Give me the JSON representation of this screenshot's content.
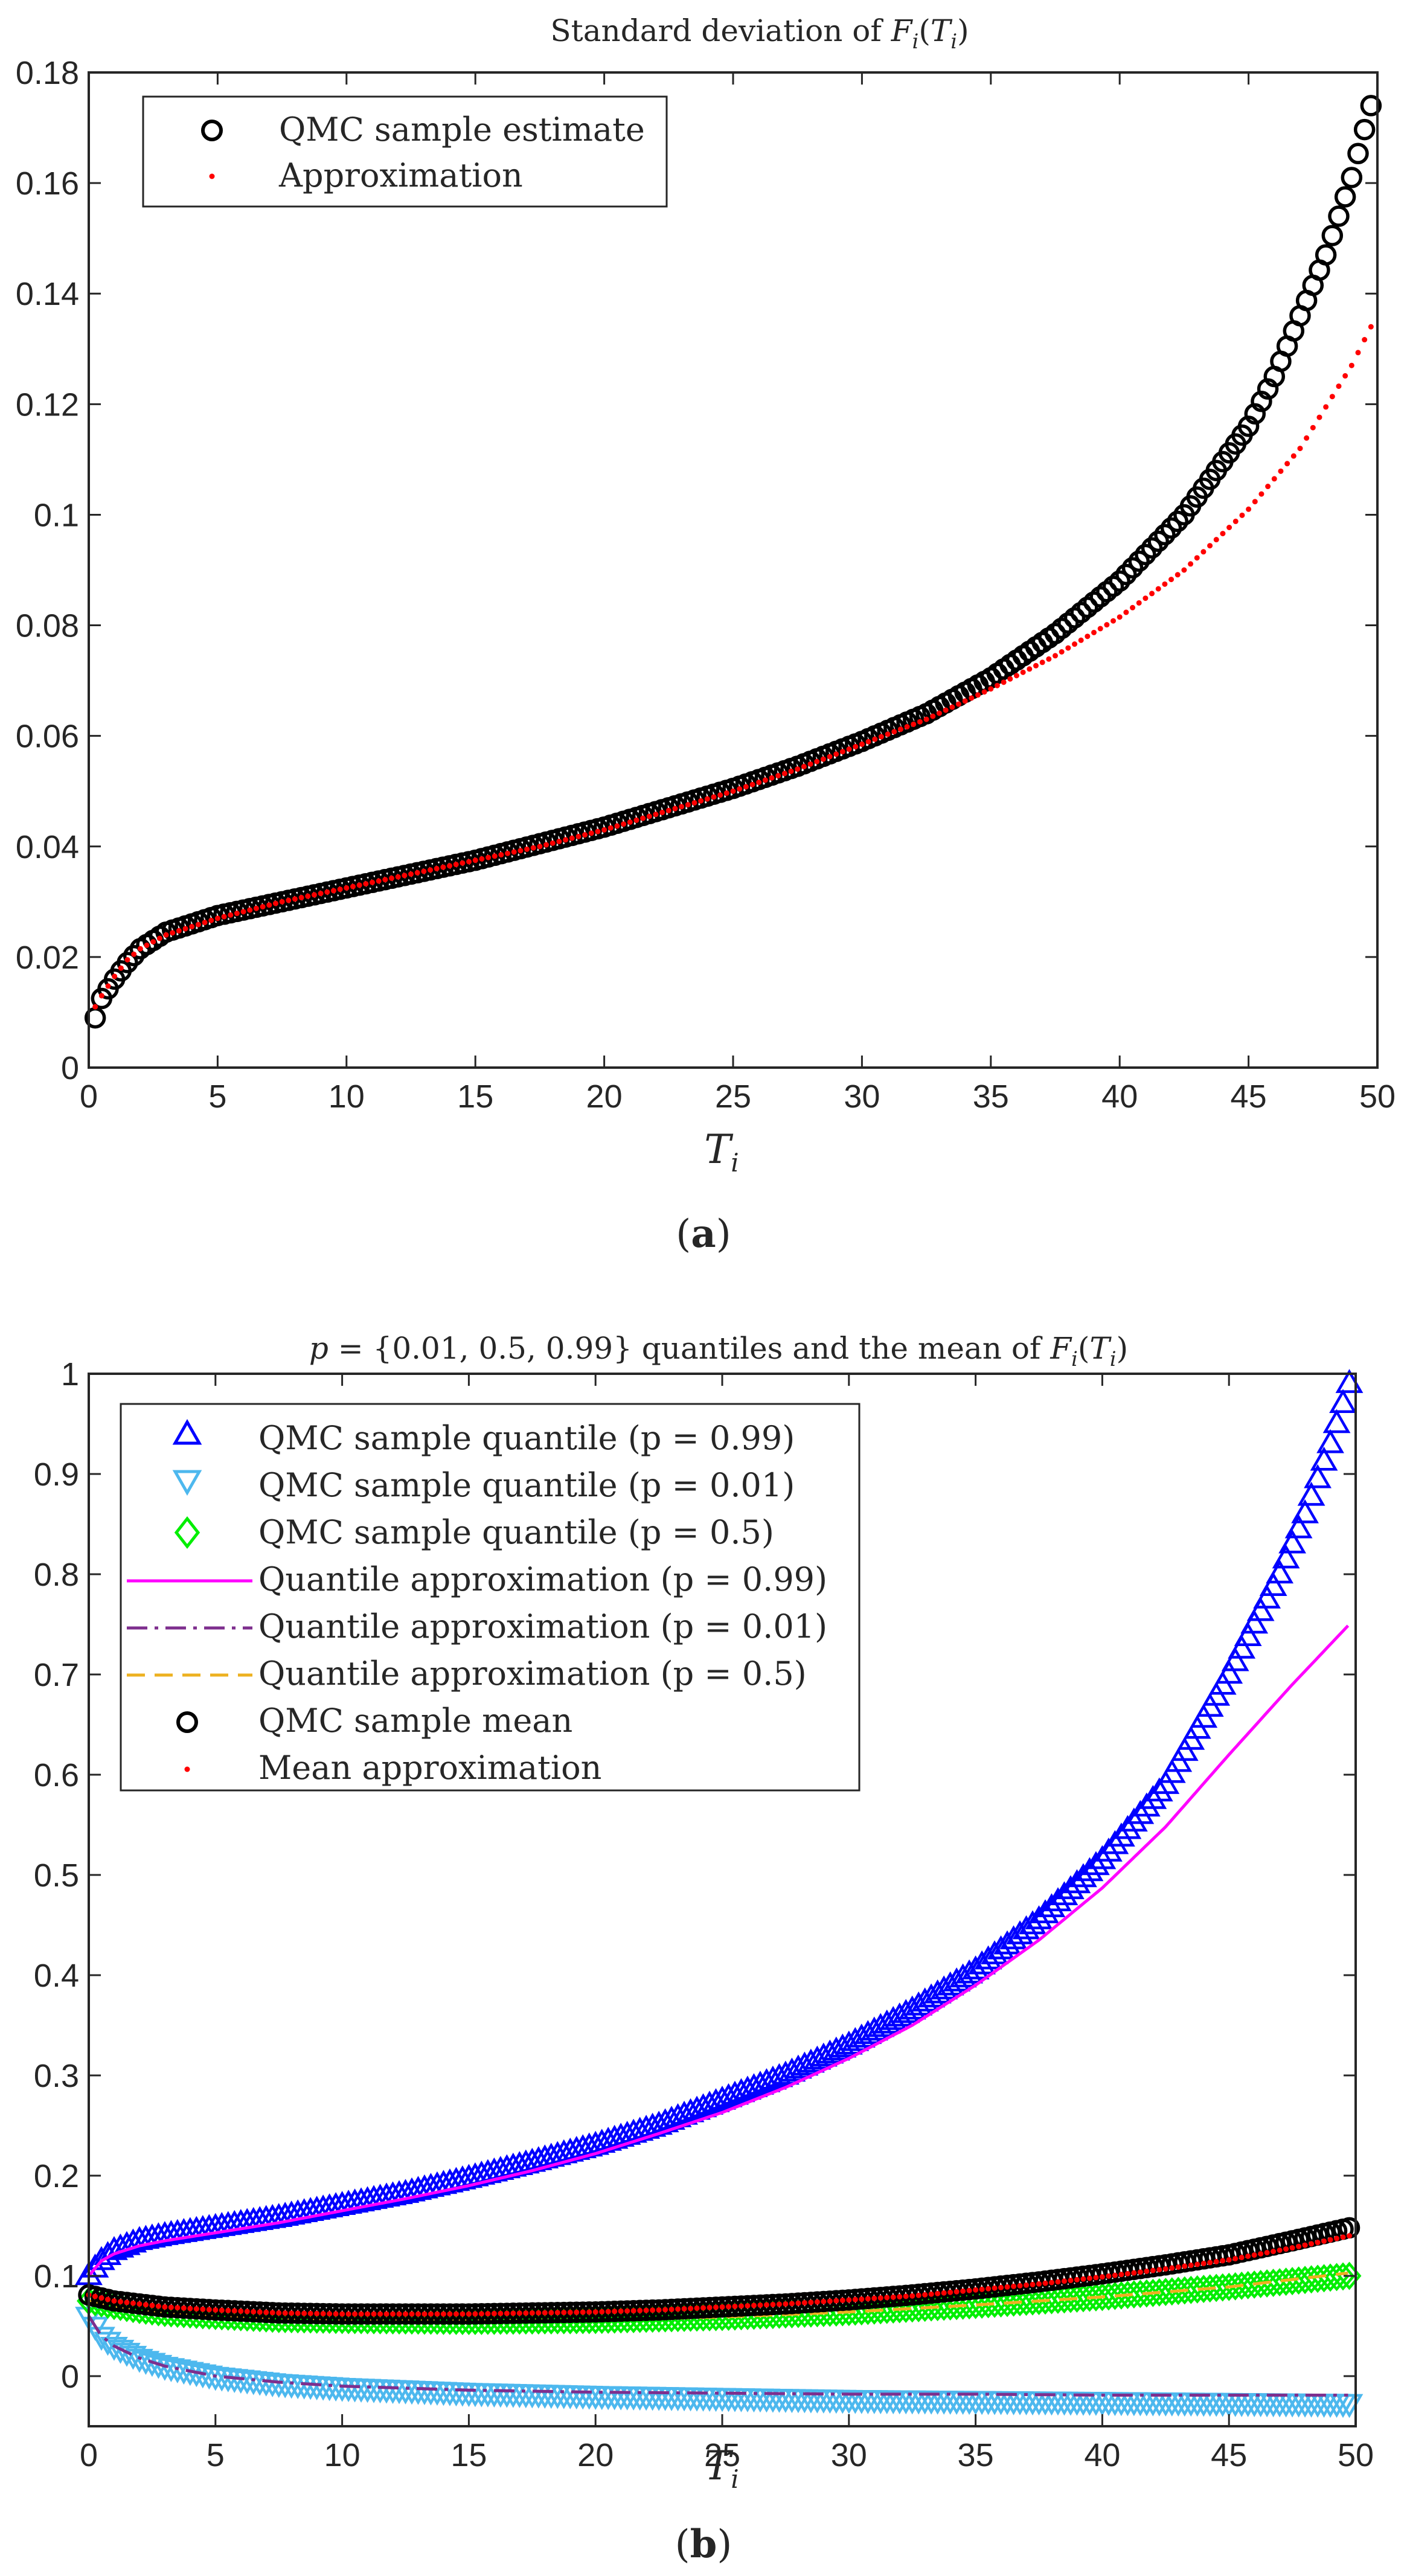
{
  "charts": [
    {
      "type": "scatter",
      "title": "Standard deviation of F_i(T_i)",
      "xlabel": "T_i",
      "ylabel": "",
      "xlim": [
        0,
        50
      ],
      "ylim": [
        0,
        0.18
      ],
      "xticks": [
        "0",
        "5",
        "10",
        "15",
        "20",
        "25",
        "30",
        "35",
        "40",
        "45",
        "50"
      ],
      "yticks": [
        "0",
        "0.02",
        "0.04",
        "0.06",
        "0.08",
        "0.1",
        "0.12",
        "0.14",
        "0.16",
        "0.18"
      ],
      "panel_label": "(a)",
      "legend": [
        "QMC sample estimate",
        "Approximation"
      ],
      "legend_position": "top-left",
      "series": [
        {
          "name": "QMC sample estimate",
          "marker": "circle",
          "color": "#000000",
          "x": [
            0.25,
            0.5,
            1,
            1.5,
            2,
            3,
            5,
            7.5,
            10,
            12.5,
            15,
            17.5,
            20,
            22.5,
            25,
            27.5,
            30,
            32.5,
            35,
            37.5,
            40,
            42.5,
            45,
            46,
            47,
            48,
            49,
            49.75
          ],
          "y": [
            0.009,
            0.0125,
            0.016,
            0.019,
            0.0215,
            0.0245,
            0.0275,
            0.03,
            0.0325,
            0.035,
            0.0375,
            0.0405,
            0.0435,
            0.047,
            0.0505,
            0.0545,
            0.059,
            0.064,
            0.0705,
            0.0785,
            0.088,
            0.1,
            0.116,
            0.125,
            0.136,
            0.147,
            0.161,
            0.174
          ]
        },
        {
          "name": "Approximation",
          "marker": "dot",
          "color": "#ff0000",
          "x": [
            0.25,
            0.5,
            1,
            1.5,
            2,
            3,
            5,
            7.5,
            10,
            12.5,
            15,
            17.5,
            20,
            22.5,
            25,
            27.5,
            30,
            32.5,
            35,
            37.5,
            40,
            42.5,
            45,
            47,
            49,
            49.75
          ],
          "y": [
            0.011,
            0.013,
            0.0165,
            0.0195,
            0.0215,
            0.024,
            0.027,
            0.03,
            0.0325,
            0.035,
            0.0375,
            0.04,
            0.043,
            0.0465,
            0.05,
            0.054,
            0.0585,
            0.063,
            0.0685,
            0.0745,
            0.0815,
            0.09,
            0.101,
            0.112,
            0.127,
            0.134
          ]
        }
      ]
    },
    {
      "type": "line",
      "title": "p = {0.01, 0.5, 0.99} quantiles and the mean of F_i(T_i)",
      "xlabel": "T_i",
      "ylabel": "",
      "xlim": [
        0,
        50
      ],
      "ylim": [
        -0.05,
        1
      ],
      "xticks": [
        "0",
        "5",
        "10",
        "15",
        "20",
        "25",
        "30",
        "35",
        "40",
        "45",
        "50"
      ],
      "yticks": [
        "0",
        "0.1",
        "0.2",
        "0.3",
        "0.4",
        "0.5",
        "0.6",
        "0.7",
        "0.8",
        "0.9",
        "1"
      ],
      "panel_label": "(b)",
      "legend": [
        "QMC sample quantile (p = 0.99)",
        "QMC sample quantile (p = 0.01)",
        "QMC sample quantile (p = 0.5)",
        "Quantile approximation (p = 0.99)",
        "Quantile approximation (p = 0.01)",
        "Quantile approximation (p = 0.5)",
        "QMC sample mean",
        "Mean approximation"
      ],
      "legend_position": "top-left",
      "series": [
        {
          "name": "QMC sample quantile (p = 0.99)",
          "marker": "triangle-up",
          "color": "#0000ff",
          "x": [
            0,
            0.5,
            1,
            2,
            3,
            5,
            7.5,
            10,
            12.5,
            15,
            17.5,
            20,
            22.5,
            25,
            27.5,
            30,
            32.5,
            35,
            37.5,
            40,
            42.5,
            45,
            46,
            47,
            48,
            49,
            49.75
          ],
          "y": [
            0.1,
            0.115,
            0.125,
            0.135,
            0.14,
            0.148,
            0.158,
            0.17,
            0.182,
            0.197,
            0.213,
            0.23,
            0.25,
            0.275,
            0.3,
            0.33,
            0.365,
            0.405,
            0.455,
            0.515,
            0.59,
            0.7,
            0.75,
            0.8,
            0.86,
            0.93,
            0.99
          ]
        },
        {
          "name": "QMC sample quantile (p = 0.01)",
          "marker": "triangle-down",
          "color": "#4db8ee",
          "x": [
            0,
            0.5,
            1,
            2,
            3,
            5,
            7.5,
            10,
            15,
            20,
            25,
            30,
            35,
            40,
            45,
            49.75
          ],
          "y": [
            0.06,
            0.04,
            0.03,
            0.018,
            0.01,
            0.0,
            -0.007,
            -0.011,
            -0.016,
            -0.019,
            -0.021,
            -0.023,
            -0.024,
            -0.025,
            -0.026,
            -0.027
          ]
        },
        {
          "name": "QMC sample quantile (p = 0.5)",
          "marker": "diamond",
          "color": "#00ee00",
          "x": [
            0,
            1,
            2,
            3,
            5,
            7.5,
            10,
            15,
            20,
            25,
            30,
            35,
            40,
            45,
            49.75
          ],
          "y": [
            0.075,
            0.07,
            0.066,
            0.063,
            0.06,
            0.057,
            0.056,
            0.055,
            0.056,
            0.059,
            0.064,
            0.071,
            0.079,
            0.089,
            0.1
          ]
        },
        {
          "name": "Quantile approximation (p = 0.99)",
          "line": "solid",
          "color": "#ff00ff",
          "x": [
            0,
            0.5,
            1,
            2,
            3,
            5,
            7.5,
            10,
            12.5,
            15,
            17.5,
            20,
            22.5,
            25,
            27.5,
            30,
            32.5,
            35,
            37.5,
            40,
            42.5,
            45,
            47.5,
            49.75
          ],
          "y": [
            0.1,
            0.115,
            0.122,
            0.13,
            0.135,
            0.143,
            0.153,
            0.165,
            0.177,
            0.19,
            0.205,
            0.222,
            0.242,
            0.263,
            0.288,
            0.317,
            0.35,
            0.39,
            0.435,
            0.487,
            0.548,
            0.62,
            0.69,
            0.75
          ]
        },
        {
          "name": "Quantile approximation (p = 0.01)",
          "line": "dashdot",
          "color": "#7e2f8e",
          "x": [
            0,
            0.5,
            1,
            2,
            3,
            5,
            7.5,
            10,
            15,
            20,
            25,
            30,
            35,
            40,
            45,
            49.75
          ],
          "y": [
            0.06,
            0.04,
            0.03,
            0.018,
            0.01,
            0.0,
            -0.006,
            -0.01,
            -0.014,
            -0.016,
            -0.017,
            -0.018,
            -0.018,
            -0.019,
            -0.019,
            -0.019
          ]
        },
        {
          "name": "Quantile approximation (p = 0.5)",
          "line": "dashed",
          "color": "#edb120",
          "x": [
            0,
            1,
            2,
            3,
            5,
            7.5,
            10,
            15,
            20,
            25,
            30,
            35,
            40,
            45,
            49.75
          ],
          "y": [
            0.075,
            0.07,
            0.066,
            0.063,
            0.06,
            0.057,
            0.056,
            0.055,
            0.056,
            0.059,
            0.064,
            0.071,
            0.079,
            0.089,
            0.103
          ]
        },
        {
          "name": "QMC sample mean",
          "marker": "circle",
          "color": "#000000",
          "x": [
            0,
            0.5,
            1,
            2,
            3,
            5,
            7.5,
            10,
            12.5,
            15,
            17.5,
            20,
            22.5,
            25,
            27.5,
            30,
            32.5,
            35,
            37.5,
            40,
            42.5,
            45,
            47.5,
            49.75
          ],
          "y": [
            0.081,
            0.078,
            0.075,
            0.072,
            0.069,
            0.066,
            0.063,
            0.062,
            0.062,
            0.062,
            0.063,
            0.064,
            0.066,
            0.069,
            0.072,
            0.076,
            0.081,
            0.087,
            0.094,
            0.102,
            0.111,
            0.121,
            0.135,
            0.148
          ]
        },
        {
          "name": "Mean approximation",
          "marker": "dot",
          "color": "#ff0000",
          "x": [
            0,
            0.5,
            1,
            2,
            3,
            5,
            7.5,
            10,
            12.5,
            15,
            17.5,
            20,
            22.5,
            25,
            27.5,
            30,
            32.5,
            35,
            37.5,
            40,
            42.5,
            45,
            47.5,
            49.75
          ],
          "y": [
            0.081,
            0.078,
            0.075,
            0.072,
            0.069,
            0.066,
            0.063,
            0.062,
            0.062,
            0.062,
            0.063,
            0.064,
            0.066,
            0.069,
            0.072,
            0.076,
            0.08,
            0.086,
            0.092,
            0.099,
            0.107,
            0.116,
            0.128,
            0.14
          ]
        }
      ]
    }
  ]
}
